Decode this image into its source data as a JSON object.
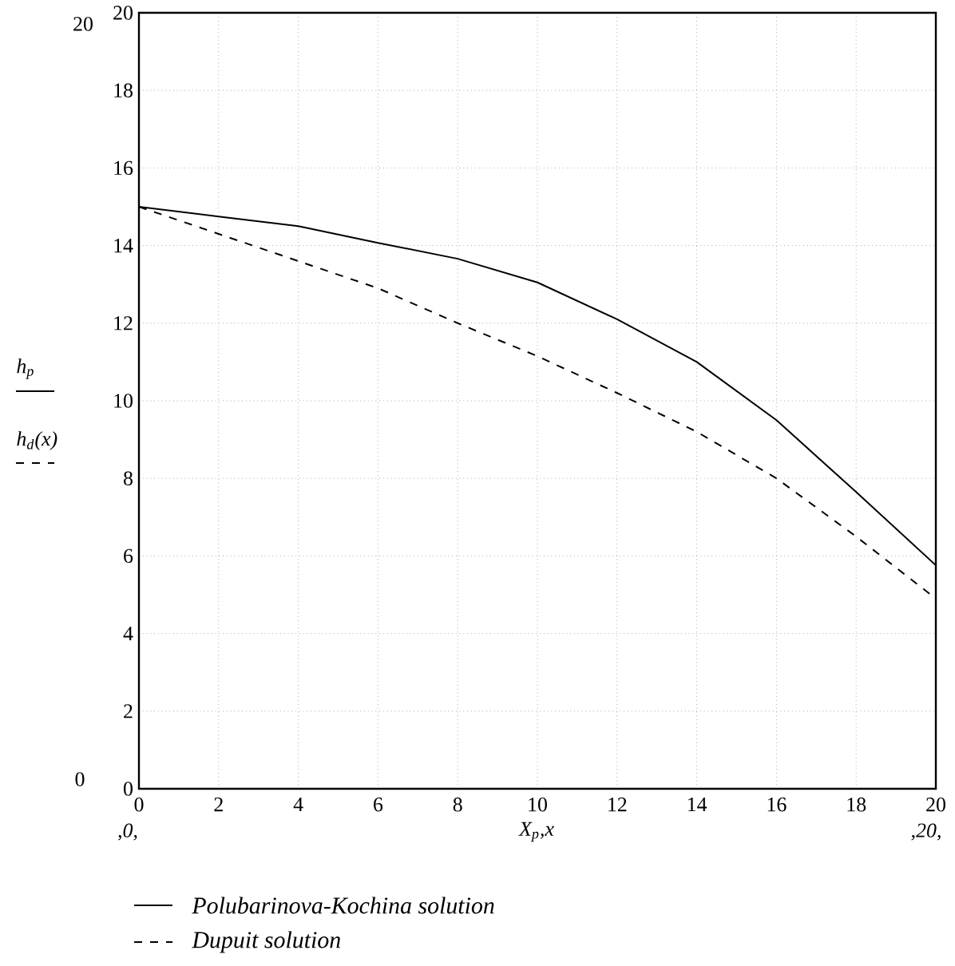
{
  "chart_data": {
    "type": "line",
    "xlabel": "X$_{p}$,x",
    "x": [
      0,
      2,
      4,
      6,
      8,
      10,
      12,
      14,
      16,
      18,
      20
    ],
    "series": [
      {
        "name": "Polubarinova-Kochina solution",
        "color": "#000000",
        "line_style": "solid",
        "values": [
          15,
          14.75,
          14.5,
          14.07,
          13.66,
          13.05,
          12.1,
          11.0,
          9.5,
          7.65,
          5.76
        ]
      },
      {
        "name": "Dupuit solution",
        "color": "#000000",
        "line_style": "dashed",
        "values": [
          15,
          14.3,
          13.6,
          12.9,
          12.0,
          11.15,
          10.2,
          9.2,
          8.0,
          6.5,
          4.9
        ]
      }
    ],
    "xlim": [
      0,
      20
    ],
    "ylim": [
      0,
      20
    ],
    "xticks": [
      0,
      2,
      4,
      6,
      8,
      10,
      12,
      14,
      16,
      18,
      20
    ],
    "yticks": [
      0,
      2,
      4,
      6,
      8,
      10,
      12,
      14,
      16,
      18,
      20
    ],
    "grid": true,
    "legend": "bottom",
    "annotations": [
      "h$_{p}$",
      "h$_{d}$(x)",
      "20",
      "0",
      ",0,",
      ",20,"
    ]
  }
}
